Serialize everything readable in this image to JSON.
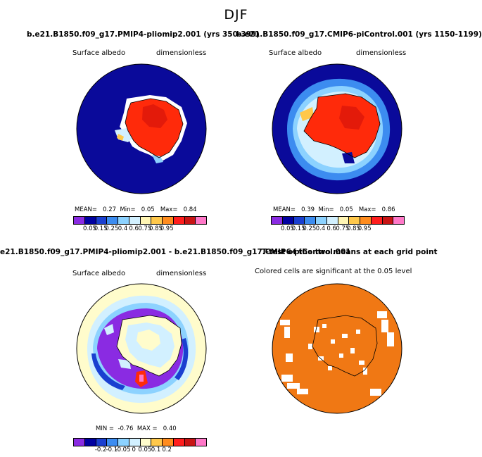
{
  "season": "DJF",
  "panels": [
    {
      "title": "b.e21.B1850.f09_g17.PMIP4-pliomip2.001 (yrs 350-399)",
      "left_label": "Surface albedo",
      "right_label": "dimensionless",
      "stats": {
        "mean_label": "MEAN=",
        "mean": "0.27",
        "min_label": "Min=",
        "min": "0.05",
        "max_label": "Max=",
        "max": "0.84"
      }
    },
    {
      "title": "b.e21.B1850.f09_g17.CMIP6-piControl.001 (yrs 1150-1199)",
      "left_label": "Surface albedo",
      "right_label": "dimensionless",
      "stats": {
        "mean_label": "MEAN=",
        "mean": "0.39",
        "min_label": "Min=",
        "min": "0.05",
        "max_label": "Max=",
        "max": "0.86"
      }
    },
    {
      "title": "e21.B1850.f09_g17.PMIP4-pliomip2.001 - b.e21.B1850.f09_g17.CMIP6-piControl.001",
      "left_label": "Surface albedo",
      "right_label": "dimensionless",
      "stats": {
        "min_label": "MIN =",
        "min": "-0.76",
        "max_label": "MAX =",
        "max": "0.40"
      }
    },
    {
      "title": "T-test of the two means at each grid point",
      "subtitle": "Colored cells are significant at the 0.05 level"
    }
  ],
  "colorbar_abs": {
    "colors": [
      "#8a2be2",
      "#0000a0",
      "#1a3fd0",
      "#3c8cf0",
      "#8cd2ff",
      "#d2f0ff",
      "#fff5b4",
      "#ffc84b",
      "#ff8c1e",
      "#ff1e1e",
      "#c81414",
      "#ff78c8"
    ],
    "labels": [
      "0.05",
      "0.15",
      "0.25",
      "0.4",
      "0.6",
      "0.75",
      "0.85",
      "0.95"
    ]
  },
  "colorbar_diff": {
    "colors": [
      "#8a2be2",
      "#0000a0",
      "#1a3fd0",
      "#3c8cf0",
      "#8cd2ff",
      "#d2f0ff",
      "#fffccc",
      "#ffc84b",
      "#ff8c1e",
      "#ff1e1e",
      "#c81414",
      "#ff78c8"
    ],
    "labels": [
      "-0.2",
      "-0.1",
      "-0.05",
      "0",
      "0.05",
      "0.1",
      "0.2"
    ]
  }
}
